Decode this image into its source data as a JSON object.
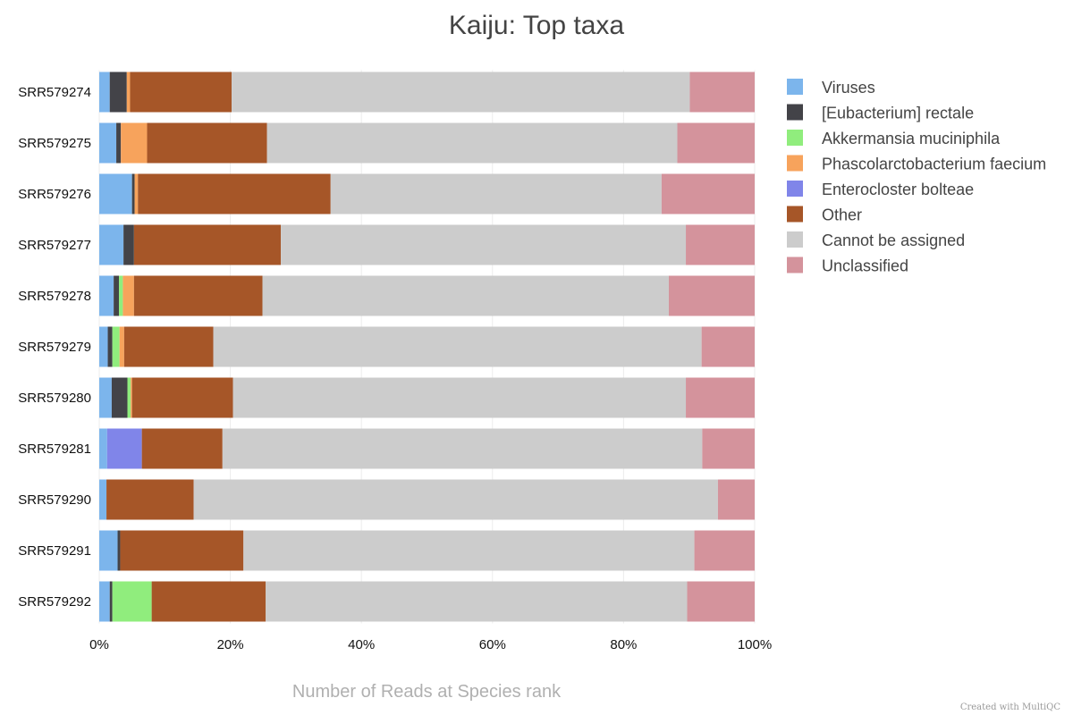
{
  "credit": "Created with MultiQC",
  "chart_data": {
    "type": "bar",
    "orientation": "horizontal",
    "stacked": true,
    "title": "Kaiju: Top taxa",
    "xlabel": "Number of Reads at Species rank",
    "ylabel": "",
    "xlim": [
      0,
      100
    ],
    "x_ticks": [
      "0%",
      "20%",
      "40%",
      "60%",
      "80%",
      "100%"
    ],
    "x_tick_values": [
      0,
      20,
      40,
      60,
      80,
      100
    ],
    "grid": true,
    "legend_position": "right",
    "categories": [
      "SRR579274",
      "SRR579275",
      "SRR579276",
      "SRR579277",
      "SRR579278",
      "SRR579279",
      "SRR579280",
      "SRR579281",
      "SRR579290",
      "SRR579291",
      "SRR579292"
    ],
    "series": [
      {
        "name": "Viruses",
        "color": "#7cb5ec",
        "values": [
          1.6,
          2.6,
          5.0,
          3.7,
          2.2,
          1.3,
          1.9,
          1.2,
          1.1,
          2.8,
          1.6
        ]
      },
      {
        "name": "[Eubacterium] rectale",
        "color": "#434348",
        "values": [
          2.6,
          0.7,
          0.4,
          1.6,
          0.8,
          0.7,
          2.4,
          0.0,
          0.0,
          0.4,
          0.4
        ]
      },
      {
        "name": "Akkermansia muciniphila",
        "color": "#90ed7d",
        "values": [
          0.0,
          0.0,
          0.0,
          0.0,
          0.6,
          1.1,
          0.5,
          0.0,
          0.0,
          0.0,
          6.0
        ]
      },
      {
        "name": "Phascolarctobacterium faecium",
        "color": "#f7a35c",
        "values": [
          0.5,
          4.0,
          0.5,
          0.0,
          1.7,
          0.7,
          0.2,
          0.0,
          0.0,
          0.0,
          0.0
        ]
      },
      {
        "name": "Enterocloster bolteae",
        "color": "#8085e9",
        "values": [
          0.0,
          0.0,
          0.0,
          0.0,
          0.0,
          0.0,
          0.0,
          5.3,
          0.0,
          0.0,
          0.0
        ]
      },
      {
        "name": "Other",
        "color": "#a65628",
        "values": [
          15.5,
          18.3,
          29.4,
          22.4,
          19.6,
          13.6,
          15.4,
          12.3,
          13.3,
          18.8,
          17.4
        ]
      },
      {
        "name": "Cannot be assigned",
        "color": "#cccccc",
        "values": [
          69.9,
          62.6,
          50.5,
          61.8,
          62.0,
          74.5,
          69.1,
          73.2,
          80.0,
          68.8,
          64.3
        ]
      },
      {
        "name": "Unclassified",
        "color": "#d4939c",
        "values": [
          9.9,
          11.8,
          14.2,
          10.5,
          13.1,
          8.1,
          10.5,
          8.0,
          5.6,
          9.2,
          10.3
        ]
      }
    ]
  }
}
